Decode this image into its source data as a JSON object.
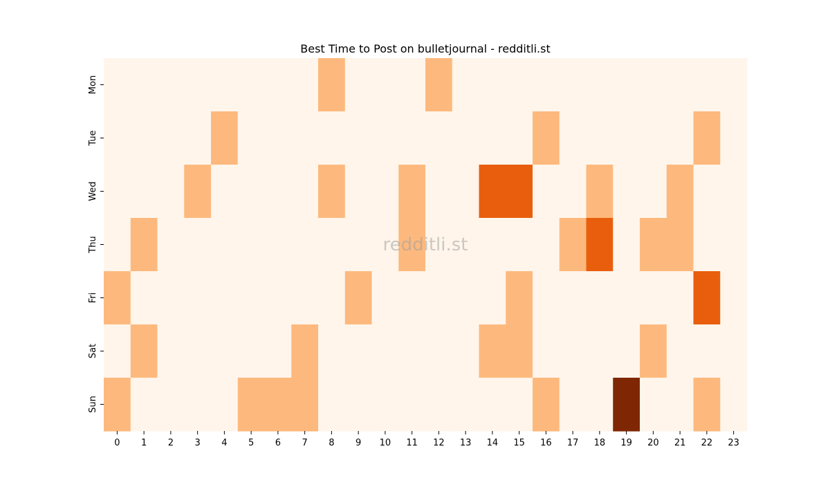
{
  "chart_data": {
    "type": "heatmap",
    "title": "Best Time to Post on bulletjournal - redditli.st",
    "watermark": "redditli.st",
    "xlabel": "",
    "ylabel": "",
    "x_categories": [
      "0",
      "1",
      "2",
      "3",
      "4",
      "5",
      "6",
      "7",
      "8",
      "9",
      "10",
      "11",
      "12",
      "13",
      "14",
      "15",
      "16",
      "17",
      "18",
      "19",
      "20",
      "21",
      "22",
      "23"
    ],
    "y_categories": [
      "Mon",
      "Tue",
      "Wed",
      "Thu",
      "Fri",
      "Sat",
      "Sun"
    ],
    "values": [
      [
        0,
        0,
        0,
        0,
        0,
        0,
        0,
        0,
        1,
        0,
        0,
        0,
        1,
        0,
        0,
        0,
        0,
        0,
        0,
        0,
        0,
        0,
        0,
        0
      ],
      [
        0,
        0,
        0,
        0,
        1,
        0,
        0,
        0,
        0,
        0,
        0,
        0,
        0,
        0,
        0,
        0,
        1,
        0,
        0,
        0,
        0,
        0,
        1,
        0
      ],
      [
        0,
        0,
        0,
        1,
        0,
        0,
        0,
        0,
        1,
        0,
        0,
        1,
        0,
        0,
        2,
        2,
        0,
        0,
        1,
        0,
        0,
        1,
        0,
        0
      ],
      [
        0,
        1,
        0,
        0,
        0,
        0,
        0,
        0,
        0,
        0,
        0,
        1,
        0,
        0,
        0,
        0,
        0,
        1,
        2,
        0,
        1,
        1,
        0,
        0
      ],
      [
        1,
        0,
        0,
        0,
        0,
        0,
        0,
        0,
        0,
        1,
        0,
        0,
        0,
        0,
        0,
        1,
        0,
        0,
        0,
        0,
        0,
        0,
        2,
        0
      ],
      [
        0,
        1,
        0,
        0,
        0,
        0,
        0,
        1,
        0,
        0,
        0,
        0,
        0,
        0,
        1,
        1,
        0,
        0,
        0,
        0,
        1,
        0,
        0,
        0
      ],
      [
        1,
        0,
        0,
        0,
        0,
        1,
        1,
        1,
        0,
        0,
        0,
        0,
        0,
        0,
        0,
        0,
        1,
        0,
        0,
        3,
        0,
        0,
        1,
        0
      ]
    ],
    "colormap": "Oranges",
    "level_colors": [
      "#fff5eb",
      "#fdb97d",
      "#e95e0d",
      "#7f2704"
    ],
    "colorbar": false,
    "grid": false
  }
}
